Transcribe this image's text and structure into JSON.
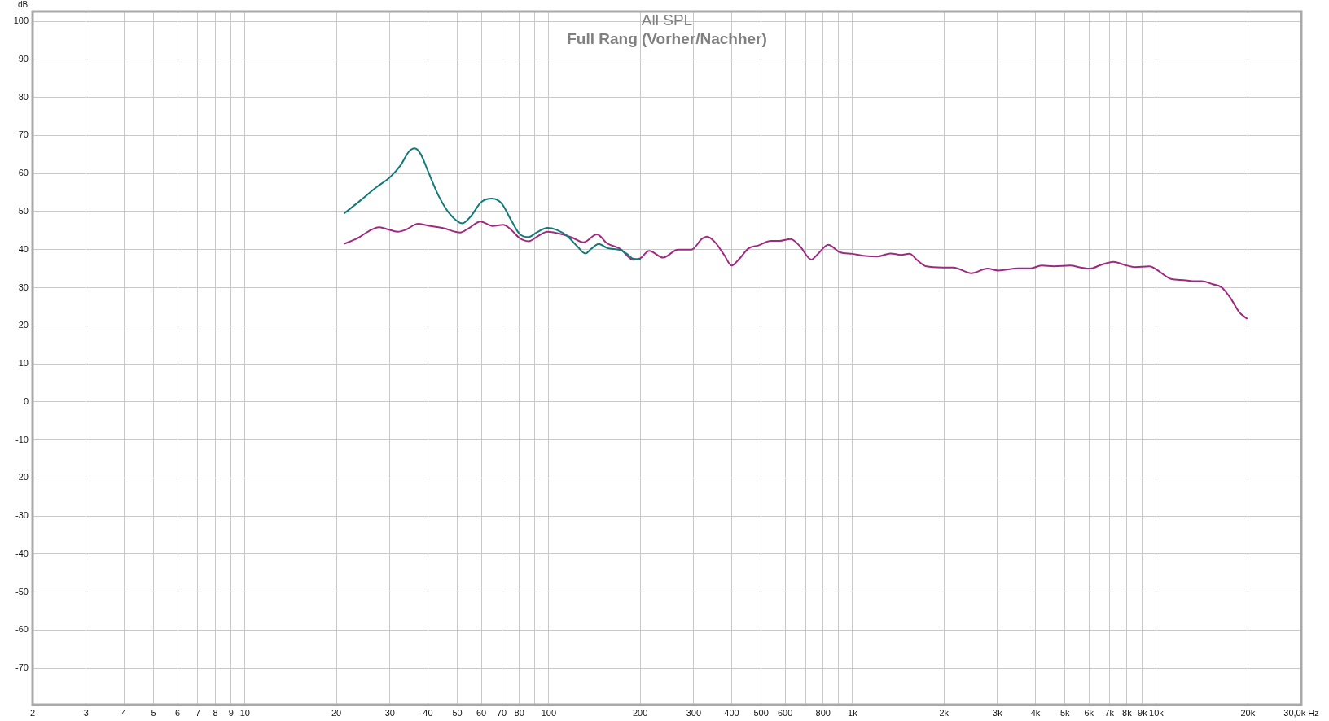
{
  "chart_data": {
    "type": "line",
    "title": "All SPL",
    "subtitle": "Full Rang (Vorher/Nachher)",
    "ylabel": "dB",
    "log": "x",
    "grid": true,
    "marker": "none",
    "line_style": "solid",
    "xlim": [
      2,
      30000
    ],
    "xticks": [
      2,
      3,
      4,
      5,
      6,
      7,
      8,
      9,
      10,
      20,
      30,
      40,
      50,
      60,
      70,
      80,
      {
        "value": 90,
        "label": null
      },
      100,
      200,
      300,
      400,
      500,
      600,
      {
        "value": 700,
        "label": null
      },
      800,
      {
        "value": 900,
        "label": null
      },
      {
        "value": 1000,
        "label": "1k"
      },
      {
        "value": 2000,
        "label": "2k"
      },
      {
        "value": 3000,
        "label": "3k"
      },
      {
        "value": 4000,
        "label": "4k"
      },
      {
        "value": 5000,
        "label": "5k"
      },
      {
        "value": 6000,
        "label": "6k"
      },
      {
        "value": 7000,
        "label": "7k"
      },
      {
        "value": 8000,
        "label": "8k"
      },
      {
        "value": 9000,
        "label": "9k"
      },
      {
        "value": 10000,
        "label": "10k"
      },
      {
        "value": 20000,
        "label": "20k"
      },
      {
        "value": 30000,
        "label": "30,0k Hz"
      }
    ],
    "ylim": [
      -79.6,
      102.6
    ],
    "yticks": [
      -70,
      -60,
      -50,
      -40,
      -30,
      -20,
      -10,
      0,
      10,
      20,
      30,
      40,
      50,
      60,
      70,
      80,
      90,
      100
    ],
    "series": [
      {
        "color": "#127a78",
        "x": [
          21.3,
          23.9,
          27.1,
          30,
          32.5,
          34.6,
          36.2,
          37.9,
          40,
          43.3,
          47,
          52,
          55.2,
          60,
          65,
          70,
          75,
          80,
          85.8,
          91.3,
          99,
          106,
          115,
          124,
          132,
          138,
          146,
          156,
          172,
          180,
          190,
          200
        ],
        "values": [
          49.6,
          52.8,
          56.4,
          59.0,
          62.1,
          65.7,
          66.6,
          65.1,
          60.7,
          54.3,
          49.6,
          46.9,
          48.6,
          52.5,
          53.4,
          52.1,
          47.9,
          44.2,
          43.3,
          44.5,
          45.7,
          45.2,
          43.6,
          40.9,
          39.0,
          40.2,
          41.5,
          40.4,
          39.9,
          39.0,
          37.6,
          37.5
        ]
      },
      {
        "color": "#9e2a80",
        "x": [
          21.3,
          23.5,
          25.5,
          27.6,
          29.3,
          31.8,
          33.8,
          37.1,
          40,
          45.1,
          51.1,
          54.5,
          59.6,
          65.3,
          70.8,
          75,
          80,
          85.8,
          92,
          99,
          111,
          120,
          130,
          144,
          156,
          172,
          190,
          200,
          214,
          238,
          266,
          295,
          320,
          332,
          353,
          378,
          400,
          424,
          454,
          490,
          539,
          576,
          626,
          671,
          731,
          772,
          831,
          909,
          1000,
          1085,
          1211,
          1332,
          1446,
          1540,
          1634,
          1750,
          1977,
          2147,
          2460,
          2782,
          3018,
          3509,
          3859,
          4186,
          4608,
          5207,
          5652,
          6052,
          6574,
          7226,
          7846,
          8517,
          9494,
          10000,
          11180,
          12300,
          13180,
          14100,
          15310,
          16390,
          17530,
          18770,
          19840
        ],
        "values": [
          41.6,
          43.0,
          44.8,
          45.9,
          45.4,
          44.7,
          45.2,
          46.8,
          46.3,
          45.6,
          44.5,
          45.6,
          47.4,
          46.2,
          46.5,
          45.3,
          43.1,
          42.2,
          43.5,
          44.7,
          44.0,
          43.1,
          41.9,
          44.0,
          41.6,
          40.2,
          37.3,
          37.7,
          39.7,
          37.9,
          40.0,
          40.0,
          42.9,
          43.4,
          41.9,
          38.6,
          35.8,
          37.6,
          40.3,
          41.1,
          42.3,
          42.3,
          42.8,
          40.9,
          37.4,
          39.0,
          41.3,
          39.3,
          38.9,
          38.4,
          38.2,
          39.0,
          38.6,
          38.9,
          37.2,
          35.6,
          35.3,
          35.3,
          33.8,
          35.0,
          34.5,
          35.1,
          35.1,
          35.8,
          35.6,
          35.8,
          35.3,
          35.0,
          36.0,
          36.8,
          36.0,
          35.4,
          35.6,
          34.8,
          32.3,
          32.0,
          31.7,
          31.7,
          30.9,
          30.1,
          27.3,
          23.5,
          21.9
        ]
      }
    ]
  }
}
